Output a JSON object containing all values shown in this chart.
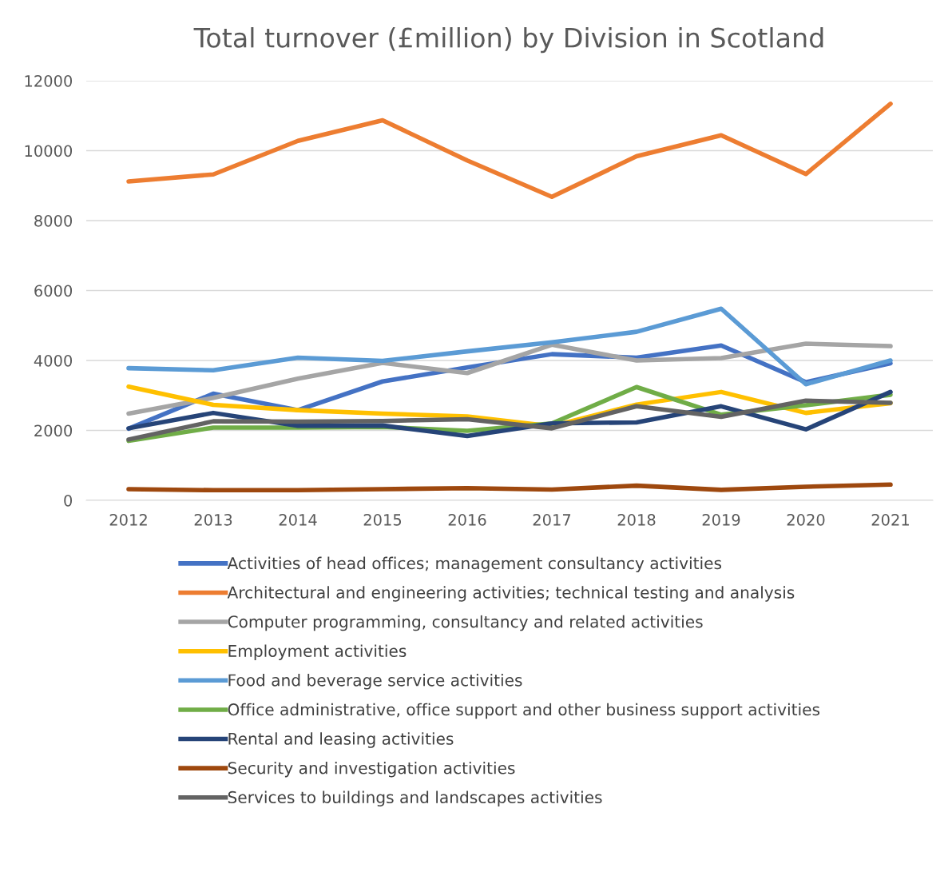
{
  "chart_data": {
    "type": "line",
    "title": "Total turnover (£million) by Division in Scotland",
    "categories": [
      "2012",
      "2013",
      "2014",
      "2015",
      "2016",
      "2017",
      "2018",
      "2019",
      "2020",
      "2021"
    ],
    "ylim": [
      0,
      12000
    ],
    "yticks": [
      0,
      2000,
      4000,
      6000,
      8000,
      10000,
      12000
    ],
    "grid": "y",
    "legend": "bottom",
    "marker": "none",
    "line_style": "solid",
    "series": [
      {
        "name": "Activities of head offices; management consultancy activities",
        "color": "#4472c4",
        "values": [
          2050,
          3050,
          2580,
          3400,
          3800,
          4180,
          4080,
          4430,
          3380,
          3920
        ]
      },
      {
        "name": "Architectural and engineering activities; technical testing and analysis",
        "color": "#ed7d31",
        "values": [
          9120,
          9320,
          10280,
          10870,
          9720,
          8680,
          9840,
          10440,
          9330,
          11340
        ]
      },
      {
        "name": "Computer programming, consultancy and related activities",
        "color": "#a5a5a5",
        "values": [
          2480,
          2930,
          3480,
          3930,
          3640,
          4450,
          4000,
          4070,
          4480,
          4410
        ]
      },
      {
        "name": "Employment activities",
        "color": "#ffc000",
        "values": [
          3250,
          2730,
          2580,
          2480,
          2400,
          2120,
          2740,
          3100,
          2500,
          2780
        ]
      },
      {
        "name": "Food and beverage service activities",
        "color": "#5b9bd5",
        "values": [
          3780,
          3720,
          4080,
          3990,
          4260,
          4520,
          4820,
          5480,
          3320,
          4000
        ]
      },
      {
        "name": "Office administrative, office support and other business support activities",
        "color": "#70ad47",
        "values": [
          1700,
          2080,
          2080,
          2100,
          1990,
          2200,
          3240,
          2450,
          2720,
          3020
        ]
      },
      {
        "name": "Rental and leasing activities",
        "color": "#264478",
        "values": [
          2060,
          2500,
          2130,
          2140,
          1840,
          2200,
          2230,
          2690,
          2030,
          3100
        ]
      },
      {
        "name": "Security and investigation activities",
        "color": "#9e480e",
        "values": [
          320,
          290,
          290,
          320,
          350,
          310,
          420,
          300,
          390,
          450
        ]
      },
      {
        "name": "Services to buildings and landscapes activities",
        "color": "#636363",
        "values": [
          1740,
          2260,
          2250,
          2270,
          2320,
          2060,
          2690,
          2390,
          2850,
          2790
        ]
      }
    ]
  }
}
